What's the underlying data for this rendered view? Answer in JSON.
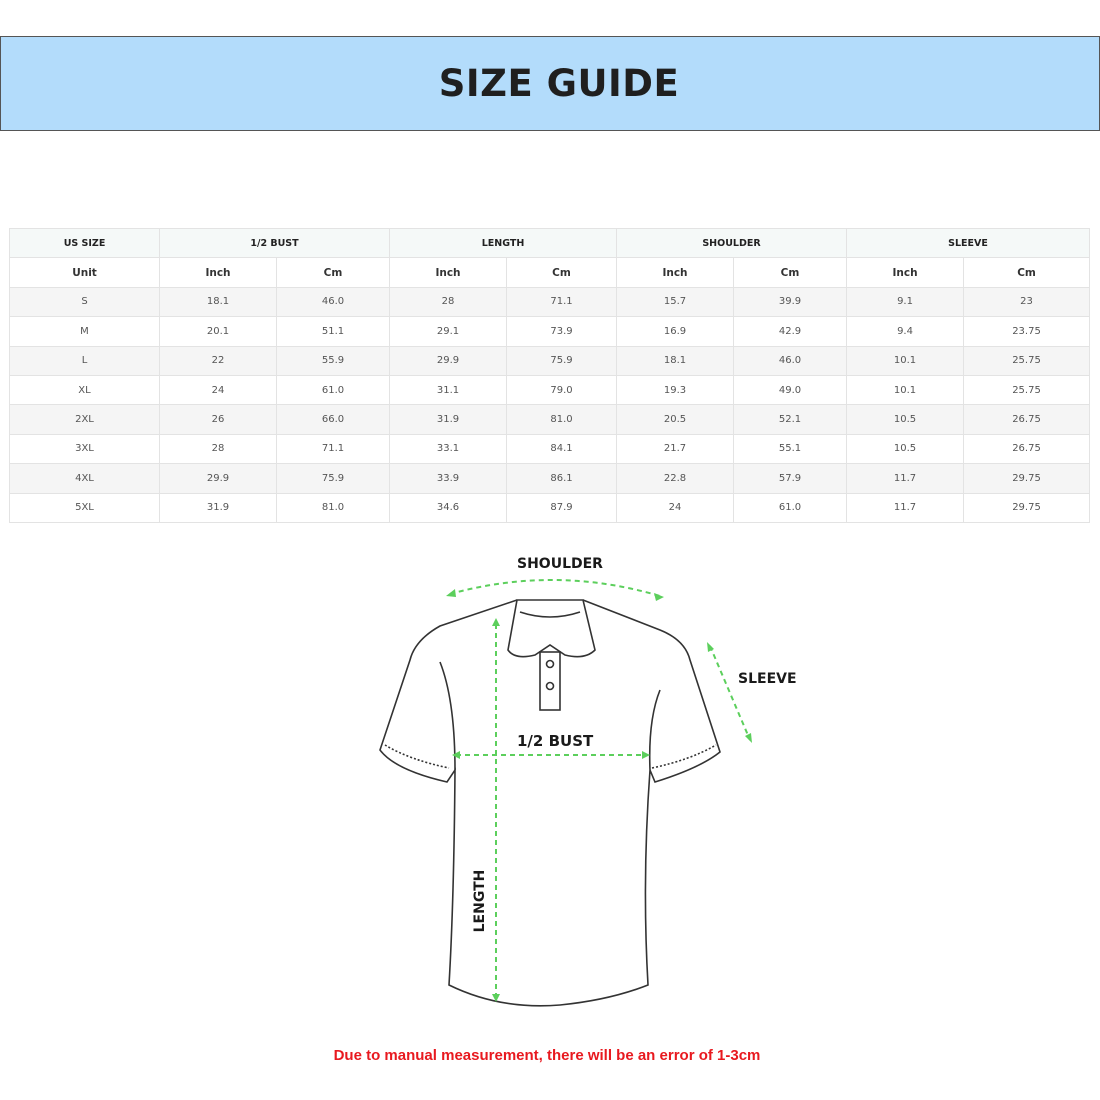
{
  "title": "SIZE GUIDE",
  "table": {
    "groups": [
      "US SIZE",
      "1/2 BUST",
      "LENGTH",
      "SHOULDER",
      "SLEEVE"
    ],
    "units": [
      "Unit",
      "Inch",
      "Cm",
      "Inch",
      "Cm",
      "Inch",
      "Cm",
      "Inch",
      "Cm"
    ],
    "rows": [
      [
        "S",
        "18.1",
        "46.0",
        "28",
        "71.1",
        "15.7",
        "39.9",
        "9.1",
        "23"
      ],
      [
        "M",
        "20.1",
        "51.1",
        "29.1",
        "73.9",
        "16.9",
        "42.9",
        "9.4",
        "23.75"
      ],
      [
        "L",
        "22",
        "55.9",
        "29.9",
        "75.9",
        "18.1",
        "46.0",
        "10.1",
        "25.75"
      ],
      [
        "XL",
        "24",
        "61.0",
        "31.1",
        "79.0",
        "19.3",
        "49.0",
        "10.1",
        "25.75"
      ],
      [
        "2XL",
        "26",
        "66.0",
        "31.9",
        "81.0",
        "20.5",
        "52.1",
        "10.5",
        "26.75"
      ],
      [
        "3XL",
        "28",
        "71.1",
        "33.1",
        "84.1",
        "21.7",
        "55.1",
        "10.5",
        "26.75"
      ],
      [
        "4XL",
        "29.9",
        "75.9",
        "33.9",
        "86.1",
        "22.8",
        "57.9",
        "11.7",
        "29.75"
      ],
      [
        "5XL",
        "31.9",
        "81.0",
        "34.6",
        "87.9",
        "24",
        "61.0",
        "11.7",
        "29.75"
      ]
    ]
  },
  "diagram": {
    "shoulder": "SHOULDER",
    "sleeve": "SLEEVE",
    "bust": "1/2 BUST",
    "length": "LENGTH",
    "arrow_color": "#5ccf5c"
  },
  "note": "Due to manual measurement, there will be an error of 1-3cm",
  "colors": {
    "banner": "#b3dcfb",
    "note": "#e8191f"
  }
}
